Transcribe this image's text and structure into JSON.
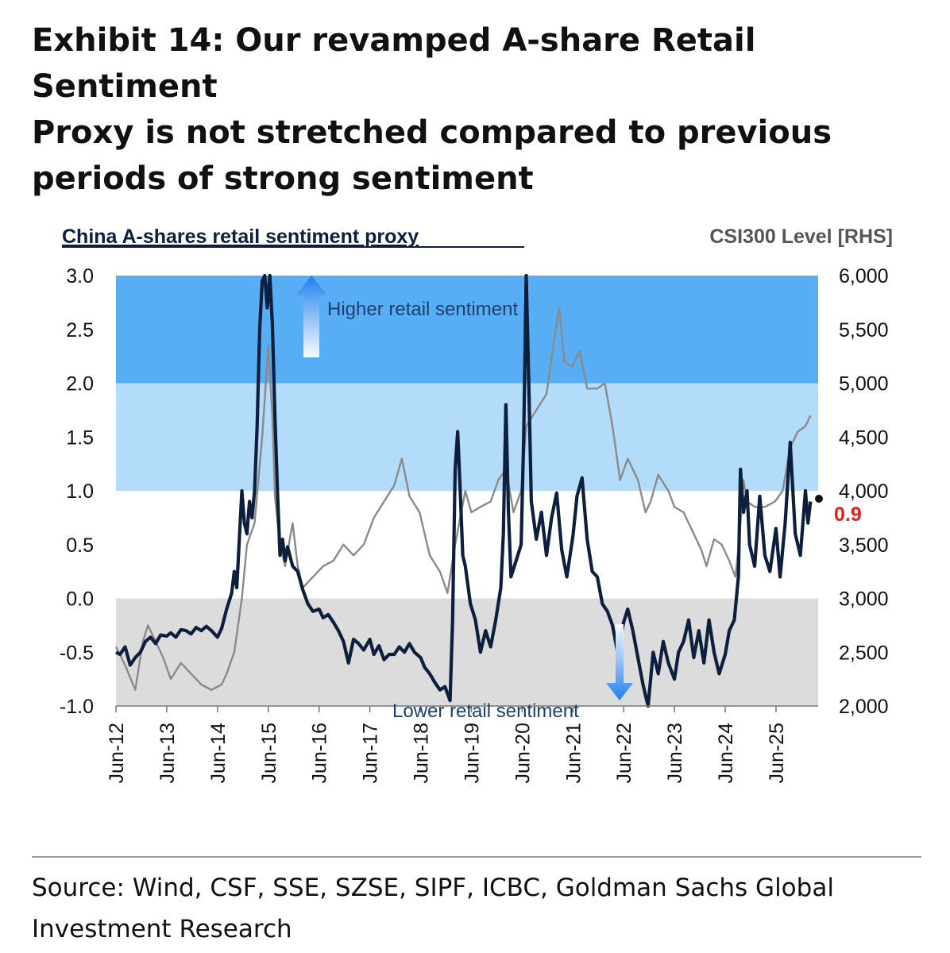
{
  "exhibit": {
    "title_lines": [
      "Exhibit 14: Our revamped A-share Retail Sentiment",
      "Proxy is not stretched compared to previous",
      "periods of strong sentiment"
    ],
    "source_lines": [
      "Source: Wind, CSF, SSE, SZSE, SIPF, ICBC, Goldman Sachs Global",
      "Investment Research"
    ]
  },
  "colors": {
    "band_high": "#58aef5",
    "band_mid": "#b3dcfb",
    "band_low": "#dcdcdc",
    "proxy_line": "#0d1f3c",
    "csi_line": "#8a8a8a",
    "latest_label": "#e0201b"
  },
  "chart_data": {
    "type": "line",
    "left_title": "China A-shares retail sentiment proxy",
    "right_title": "CSI300 Level [RHS]",
    "ylim": [
      -1.0,
      3.0
    ],
    "y2lim": [
      2000,
      6000
    ],
    "yticks": [
      "3.0",
      "2.5",
      "2.0",
      "1.5",
      "1.0",
      "0.5",
      "0.0",
      "-0.5",
      "-1.0"
    ],
    "y2ticks": [
      "6,000",
      "5,500",
      "5,000",
      "4,500",
      "4,000",
      "3,500",
      "3,000",
      "2,500",
      "2,000"
    ],
    "x_range": [
      2012.42,
      2026.25
    ],
    "xticks": [
      {
        "label": "Jun-12",
        "t": 2012.42
      },
      {
        "label": "Jun-13",
        "t": 2013.42
      },
      {
        "label": "Jun-14",
        "t": 2014.42
      },
      {
        "label": "Jun-15",
        "t": 2015.42
      },
      {
        "label": "Jun-16",
        "t": 2016.42
      },
      {
        "label": "Jun-17",
        "t": 2017.42
      },
      {
        "label": "Jun-18",
        "t": 2018.42
      },
      {
        "label": "Jun-19",
        "t": 2019.42
      },
      {
        "label": "Jun-20",
        "t": 2020.42
      },
      {
        "label": "Jun-21",
        "t": 2021.42
      },
      {
        "label": "Jun-22",
        "t": 2022.42
      },
      {
        "label": "Jun-23",
        "t": 2023.42
      },
      {
        "label": "Jun-24",
        "t": 2024.42
      },
      {
        "label": "Jun-25",
        "t": 2025.42
      }
    ],
    "bands": [
      {
        "name": "high",
        "from": 2.0,
        "to": 3.0
      },
      {
        "name": "mid",
        "from": 1.0,
        "to": 2.0
      },
      {
        "name": "low",
        "from": -1.0,
        "to": 0.0
      }
    ],
    "annotations": {
      "higher": "Higher retail sentiment",
      "lower": "Lower retail sentiment",
      "latest_value": "0.9"
    },
    "series": [
      {
        "name": "China A-shares retail sentiment proxy",
        "axis": "left",
        "points": [
          [
            2012.42,
            -0.5
          ],
          [
            2012.5,
            -0.52
          ],
          [
            2012.6,
            -0.45
          ],
          [
            2012.7,
            -0.62
          ],
          [
            2012.8,
            -0.55
          ],
          [
            2012.9,
            -0.5
          ],
          [
            2013.0,
            -0.4
          ],
          [
            2013.1,
            -0.36
          ],
          [
            2013.2,
            -0.42
          ],
          [
            2013.3,
            -0.34
          ],
          [
            2013.42,
            -0.35
          ],
          [
            2013.5,
            -0.32
          ],
          [
            2013.6,
            -0.36
          ],
          [
            2013.7,
            -0.29
          ],
          [
            2013.8,
            -0.3
          ],
          [
            2013.9,
            -0.33
          ],
          [
            2014.0,
            -0.27
          ],
          [
            2014.1,
            -0.3
          ],
          [
            2014.2,
            -0.26
          ],
          [
            2014.3,
            -0.3
          ],
          [
            2014.42,
            -0.36
          ],
          [
            2014.5,
            -0.28
          ],
          [
            2014.6,
            -0.1
          ],
          [
            2014.7,
            0.05
          ],
          [
            2014.75,
            0.25
          ],
          [
            2014.8,
            0.1
          ],
          [
            2014.85,
            0.55
          ],
          [
            2014.9,
            1.0
          ],
          [
            2014.95,
            0.7
          ],
          [
            2015.0,
            0.6
          ],
          [
            2015.05,
            0.9
          ],
          [
            2015.1,
            0.75
          ],
          [
            2015.15,
            1.0
          ],
          [
            2015.2,
            1.6
          ],
          [
            2015.25,
            2.5
          ],
          [
            2015.3,
            2.95
          ],
          [
            2015.35,
            3.0
          ],
          [
            2015.4,
            2.7
          ],
          [
            2015.45,
            3.0
          ],
          [
            2015.5,
            2.55
          ],
          [
            2015.55,
            1.7
          ],
          [
            2015.6,
            1.0
          ],
          [
            2015.65,
            0.4
          ],
          [
            2015.7,
            0.55
          ],
          [
            2015.75,
            0.35
          ],
          [
            2015.8,
            0.48
          ],
          [
            2015.9,
            0.3
          ],
          [
            2016.0,
            0.25
          ],
          [
            2016.1,
            0.08
          ],
          [
            2016.2,
            -0.05
          ],
          [
            2016.3,
            -0.12
          ],
          [
            2016.42,
            -0.1
          ],
          [
            2016.5,
            -0.18
          ],
          [
            2016.6,
            -0.15
          ],
          [
            2016.7,
            -0.22
          ],
          [
            2016.8,
            -0.3
          ],
          [
            2016.9,
            -0.4
          ],
          [
            2017.0,
            -0.6
          ],
          [
            2017.1,
            -0.38
          ],
          [
            2017.2,
            -0.42
          ],
          [
            2017.3,
            -0.48
          ],
          [
            2017.42,
            -0.38
          ],
          [
            2017.5,
            -0.52
          ],
          [
            2017.6,
            -0.44
          ],
          [
            2017.7,
            -0.57
          ],
          [
            2017.8,
            -0.52
          ],
          [
            2017.9,
            -0.52
          ],
          [
            2018.0,
            -0.45
          ],
          [
            2018.1,
            -0.5
          ],
          [
            2018.2,
            -0.42
          ],
          [
            2018.3,
            -0.5
          ],
          [
            2018.42,
            -0.55
          ],
          [
            2018.5,
            -0.64
          ],
          [
            2018.6,
            -0.7
          ],
          [
            2018.7,
            -0.78
          ],
          [
            2018.8,
            -0.85
          ],
          [
            2018.9,
            -0.82
          ],
          [
            2019.0,
            -0.95
          ],
          [
            2019.05,
            -0.2
          ],
          [
            2019.1,
            1.2
          ],
          [
            2019.15,
            1.55
          ],
          [
            2019.2,
            1.0
          ],
          [
            2019.25,
            0.4
          ],
          [
            2019.3,
            0.3
          ],
          [
            2019.4,
            -0.05
          ],
          [
            2019.5,
            -0.2
          ],
          [
            2019.6,
            -0.5
          ],
          [
            2019.7,
            -0.3
          ],
          [
            2019.8,
            -0.45
          ],
          [
            2019.9,
            -0.2
          ],
          [
            2020.0,
            0.1
          ],
          [
            2020.05,
            0.6
          ],
          [
            2020.1,
            1.8
          ],
          [
            2020.15,
            0.8
          ],
          [
            2020.2,
            0.2
          ],
          [
            2020.3,
            0.35
          ],
          [
            2020.4,
            0.5
          ],
          [
            2020.45,
            1.5
          ],
          [
            2020.5,
            3.0
          ],
          [
            2020.55,
            2.0
          ],
          [
            2020.6,
            0.9
          ],
          [
            2020.7,
            0.55
          ],
          [
            2020.8,
            0.8
          ],
          [
            2020.9,
            0.4
          ],
          [
            2021.0,
            0.75
          ],
          [
            2021.1,
            0.98
          ],
          [
            2021.2,
            0.45
          ],
          [
            2021.3,
            0.2
          ],
          [
            2021.42,
            0.58
          ],
          [
            2021.5,
            0.95
          ],
          [
            2021.6,
            1.12
          ],
          [
            2021.7,
            0.55
          ],
          [
            2021.8,
            0.25
          ],
          [
            2021.9,
            0.2
          ],
          [
            2022.0,
            -0.05
          ],
          [
            2022.1,
            -0.12
          ],
          [
            2022.2,
            -0.25
          ],
          [
            2022.3,
            -0.5
          ],
          [
            2022.42,
            -0.22
          ],
          [
            2022.5,
            -0.1
          ],
          [
            2022.6,
            -0.3
          ],
          [
            2022.7,
            -0.55
          ],
          [
            2022.8,
            -0.8
          ],
          [
            2022.9,
            -1.0
          ],
          [
            2023.0,
            -0.5
          ],
          [
            2023.1,
            -0.7
          ],
          [
            2023.2,
            -0.4
          ],
          [
            2023.3,
            -0.6
          ],
          [
            2023.42,
            -0.75
          ],
          [
            2023.5,
            -0.5
          ],
          [
            2023.6,
            -0.4
          ],
          [
            2023.7,
            -0.2
          ],
          [
            2023.8,
            -0.55
          ],
          [
            2023.9,
            -0.3
          ],
          [
            2024.0,
            -0.6
          ],
          [
            2024.1,
            -0.2
          ],
          [
            2024.2,
            -0.5
          ],
          [
            2024.3,
            -0.7
          ],
          [
            2024.42,
            -0.52
          ],
          [
            2024.5,
            -0.3
          ],
          [
            2024.6,
            -0.2
          ],
          [
            2024.68,
            0.2
          ],
          [
            2024.72,
            1.2
          ],
          [
            2024.78,
            0.8
          ],
          [
            2024.85,
            1.0
          ],
          [
            2024.9,
            0.5
          ],
          [
            2025.0,
            0.3
          ],
          [
            2025.1,
            0.95
          ],
          [
            2025.2,
            0.4
          ],
          [
            2025.3,
            0.25
          ],
          [
            2025.42,
            0.65
          ],
          [
            2025.5,
            0.2
          ],
          [
            2025.6,
            0.7
          ],
          [
            2025.7,
            1.45
          ],
          [
            2025.8,
            0.6
          ],
          [
            2025.9,
            0.4
          ],
          [
            2026.0,
            1.0
          ],
          [
            2026.05,
            0.7
          ],
          [
            2026.1,
            0.9
          ]
        ]
      },
      {
        "name": "CSI300 Level",
        "axis": "right",
        "points": [
          [
            2012.42,
            2550
          ],
          [
            2012.6,
            2380
          ],
          [
            2012.8,
            2150
          ],
          [
            2012.95,
            2600
          ],
          [
            2013.05,
            2750
          ],
          [
            2013.2,
            2600
          ],
          [
            2013.35,
            2450
          ],
          [
            2013.5,
            2250
          ],
          [
            2013.7,
            2400
          ],
          [
            2013.9,
            2300
          ],
          [
            2014.1,
            2200
          ],
          [
            2014.3,
            2150
          ],
          [
            2014.5,
            2200
          ],
          [
            2014.6,
            2300
          ],
          [
            2014.75,
            2500
          ],
          [
            2014.9,
            3000
          ],
          [
            2015.0,
            3500
          ],
          [
            2015.15,
            3700
          ],
          [
            2015.3,
            4500
          ],
          [
            2015.42,
            5350
          ],
          [
            2015.5,
            4700
          ],
          [
            2015.55,
            3950
          ],
          [
            2015.65,
            3500
          ],
          [
            2015.75,
            3300
          ],
          [
            2015.9,
            3700
          ],
          [
            2016.0,
            3300
          ],
          [
            2016.1,
            3100
          ],
          [
            2016.3,
            3200
          ],
          [
            2016.5,
            3300
          ],
          [
            2016.7,
            3350
          ],
          [
            2016.9,
            3500
          ],
          [
            2017.1,
            3400
          ],
          [
            2017.3,
            3500
          ],
          [
            2017.5,
            3750
          ],
          [
            2017.7,
            3900
          ],
          [
            2017.9,
            4050
          ],
          [
            2018.05,
            4300
          ],
          [
            2018.2,
            3950
          ],
          [
            2018.4,
            3800
          ],
          [
            2018.6,
            3400
          ],
          [
            2018.8,
            3250
          ],
          [
            2018.95,
            3050
          ],
          [
            2019.1,
            3500
          ],
          [
            2019.3,
            4000
          ],
          [
            2019.42,
            3800
          ],
          [
            2019.6,
            3850
          ],
          [
            2019.8,
            3900
          ],
          [
            2019.95,
            4100
          ],
          [
            2020.1,
            4200
          ],
          [
            2020.25,
            3800
          ],
          [
            2020.4,
            4000
          ],
          [
            2020.5,
            4600
          ],
          [
            2020.7,
            4750
          ],
          [
            2020.9,
            4900
          ],
          [
            2021.05,
            5400
          ],
          [
            2021.15,
            5700
          ],
          [
            2021.25,
            5200
          ],
          [
            2021.4,
            5150
          ],
          [
            2021.55,
            5300
          ],
          [
            2021.7,
            4950
          ],
          [
            2021.9,
            4950
          ],
          [
            2022.05,
            5000
          ],
          [
            2022.2,
            4600
          ],
          [
            2022.35,
            4100
          ],
          [
            2022.5,
            4300
          ],
          [
            2022.7,
            4100
          ],
          [
            2022.85,
            3800
          ],
          [
            2022.95,
            3900
          ],
          [
            2023.1,
            4150
          ],
          [
            2023.3,
            4000
          ],
          [
            2023.42,
            3850
          ],
          [
            2023.6,
            3800
          ],
          [
            2023.8,
            3600
          ],
          [
            2023.95,
            3450
          ],
          [
            2024.05,
            3300
          ],
          [
            2024.2,
            3550
          ],
          [
            2024.35,
            3500
          ],
          [
            2024.5,
            3350
          ],
          [
            2024.62,
            3200
          ],
          [
            2024.7,
            3550
          ],
          [
            2024.78,
            4100
          ],
          [
            2024.85,
            3900
          ],
          [
            2025.0,
            3850
          ],
          [
            2025.2,
            3850
          ],
          [
            2025.4,
            3900
          ],
          [
            2025.55,
            4000
          ],
          [
            2025.7,
            4400
          ],
          [
            2025.85,
            4550
          ],
          [
            2026.0,
            4600
          ],
          [
            2026.1,
            4700
          ]
        ]
      }
    ]
  }
}
